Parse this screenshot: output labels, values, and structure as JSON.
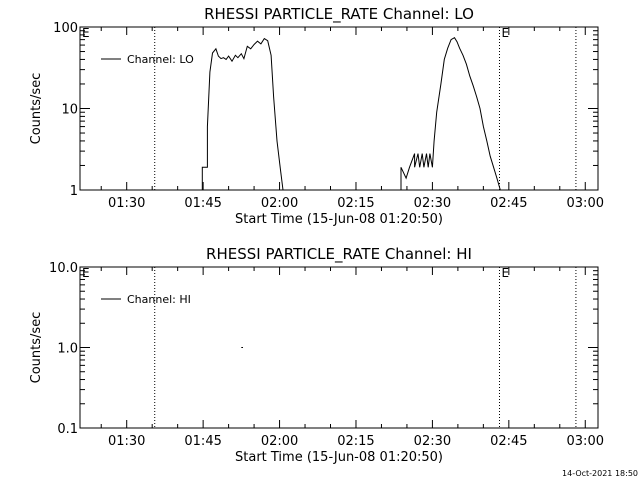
{
  "footer": {
    "timestamp": "14-Oct-2021 18:50"
  },
  "chart_data": [
    {
      "type": "line",
      "title": "RHESSI PARTICLE_RATE Channel: LO",
      "xlabel": "Start Time (15-Jun-08 01:20:50)",
      "ylabel": "Counts/sec",
      "yscale": "log",
      "ylim": [
        1,
        100
      ],
      "yticks": [
        {
          "value": 1,
          "label": "1"
        },
        {
          "value": 10,
          "label": "10"
        },
        {
          "value": 100,
          "label": "100"
        }
      ],
      "xlim": [
        "01:20:50",
        "03:02:30"
      ],
      "xticks": [
        "01:30",
        "01:45",
        "02:00",
        "02:15",
        "02:30",
        "02:45",
        "03:00"
      ],
      "event_lines": [
        "01:35:30",
        "02:43:10",
        "02:58:10"
      ],
      "event_markers": [
        {
          "time": "01:20:50",
          "label": "E"
        },
        {
          "time": "02:43:10",
          "label": "E"
        }
      ],
      "legend": {
        "position": "top-left"
      },
      "series": [
        {
          "name": "Channel: LO",
          "x": [
            "01:44:50",
            "01:44:50",
            "01:45:50",
            "01:45:50",
            "01:46:20",
            "01:46:50",
            "01:47:30",
            "01:48:00",
            "01:48:30",
            "01:49:00",
            "01:49:30",
            "01:50:00",
            "01:50:40",
            "01:51:20",
            "01:51:50",
            "01:52:30",
            "01:53:00",
            "01:53:40",
            "01:54:20",
            "01:55:00",
            "01:55:40",
            "01:56:20",
            "01:57:00",
            "01:57:40",
            "01:58:20",
            "01:58:50",
            "01:59:30",
            "02:00:10",
            "02:00:40",
            "02:00:40"
          ],
          "y": [
            1,
            1.9,
            1.9,
            6,
            28,
            48,
            54,
            44,
            41,
            42,
            40,
            44,
            38,
            45,
            42,
            47,
            41,
            58,
            54,
            61,
            67,
            62,
            72,
            68,
            45,
            14,
            4,
            1.8,
            1,
            1
          ]
        },
        {
          "name": "Channel: LO",
          "x": [
            "02:23:50",
            "02:23:50",
            "02:24:50",
            "02:25:30",
            "02:25:30",
            "02:26:30",
            "02:26:30",
            "02:27:10",
            "02:27:30",
            "02:28:00",
            "02:28:20",
            "02:28:50",
            "02:29:10",
            "02:29:30",
            "02:30:00",
            "02:30:20",
            "02:30:50",
            "02:31:40",
            "02:32:20",
            "02:33:00",
            "02:33:40",
            "02:34:20",
            "02:34:50",
            "02:35:20",
            "02:36:00",
            "02:36:40",
            "02:37:20",
            "02:38:00",
            "02:38:40",
            "02:39:20",
            "02:40:00",
            "02:40:40",
            "02:41:20",
            "02:42:00",
            "02:42:40",
            "02:43:20",
            "02:43:20"
          ],
          "y": [
            1,
            1.9,
            1.4,
            1.9,
            1.9,
            2.8,
            1.9,
            2.8,
            1.9,
            2.8,
            1.9,
            2.8,
            1.9,
            2.8,
            1.9,
            4,
            9,
            20,
            40,
            55,
            70,
            74,
            66,
            55,
            45,
            35,
            25,
            19,
            14,
            10,
            6,
            4,
            2.6,
            1.9,
            1.4,
            1,
            1
          ]
        }
      ],
      "grid": false
    },
    {
      "type": "line",
      "title": "RHESSI PARTICLE_RATE Channel: HI",
      "xlabel": "Start Time (15-Jun-08 01:20:50)",
      "ylabel": "Counts/sec",
      "yscale": "log",
      "ylim": [
        0.1,
        10
      ],
      "yticks": [
        {
          "value": 0.1,
          "label": "0.1"
        },
        {
          "value": 1,
          "label": "1.0"
        },
        {
          "value": 10,
          "label": "10.0"
        }
      ],
      "xlim": [
        "01:20:50",
        "03:02:30"
      ],
      "xticks": [
        "01:30",
        "01:45",
        "02:00",
        "02:15",
        "02:30",
        "02:45",
        "03:00"
      ],
      "event_lines": [
        "01:35:30",
        "02:43:10",
        "02:58:10"
      ],
      "event_markers": [
        {
          "time": "01:20:50",
          "label": "E"
        },
        {
          "time": "02:43:10",
          "label": "E"
        }
      ],
      "legend": {
        "position": "top-left"
      },
      "series": [
        {
          "name": "Channel: HI",
          "x": [
            "01:52:30",
            "01:52:50"
          ],
          "y": [
            1,
            1
          ]
        }
      ],
      "grid": false
    }
  ]
}
